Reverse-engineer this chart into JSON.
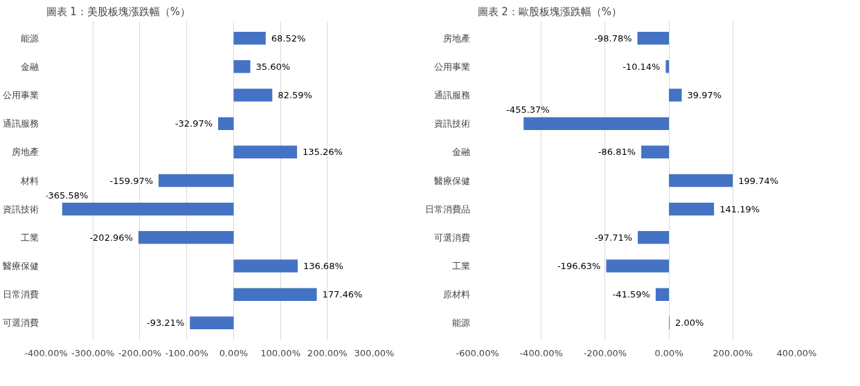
{
  "chart_data": [
    {
      "type": "bar",
      "orientation": "horizontal",
      "title": "圖表 1：美股板塊漲跌幅（%）",
      "categories": [
        "能源",
        "金融",
        "公用事業",
        "通訊服務",
        "房地產",
        "材料",
        "資訊技術",
        "工業",
        "醫療保健",
        "日常消費",
        "可選消費"
      ],
      "series": [
        {
          "color": "#4472c4",
          "values": [
            68.52,
            35.6,
            82.59,
            -32.97,
            135.26,
            -159.97,
            -365.58,
            -202.96,
            136.68,
            177.46,
            -93.21
          ]
        }
      ],
      "value_labels": [
        "68.52%",
        "35.60%",
        "82.59%",
        "-32.97%",
        "135.26%",
        "-159.97%",
        "-365.58%",
        "-202.96%",
        "136.68%",
        "177.46%",
        "-93.21%"
      ],
      "xlim": [
        -400,
        300
      ],
      "xticks": [
        {
          "value": -400,
          "label": "-400.00%"
        },
        {
          "value": -300,
          "label": "-300.00%"
        },
        {
          "value": -200,
          "label": "-200.00%"
        },
        {
          "value": -100,
          "label": "-100.00%"
        },
        {
          "value": 0,
          "label": "0.00%"
        },
        {
          "value": 100,
          "label": "100.00%"
        },
        {
          "value": 200,
          "label": "200.00%"
        },
        {
          "value": 300,
          "label": "300.00%"
        }
      ],
      "grid": "x"
    },
    {
      "type": "bar",
      "orientation": "horizontal",
      "title": "圖表 2：歐股板塊漲跌幅（%）",
      "categories": [
        "房地產",
        "公用事業",
        "通訊服務",
        "資訊技術",
        "金融",
        "醫療保健",
        "日常消費品",
        "可選消費",
        "工業",
        "原材料",
        "能源"
      ],
      "series": [
        {
          "color": "#4472c4",
          "values": [
            -98.78,
            -10.14,
            39.97,
            -455.37,
            -86.81,
            199.74,
            141.19,
            -97.71,
            -196.63,
            -41.59,
            2.0
          ]
        }
      ],
      "value_labels": [
        "-98.78%",
        "-10.14%",
        "39.97%",
        "-455.37%",
        "-86.81%",
        "199.74%",
        "141.19%",
        "-97.71%",
        "-196.63%",
        "-41.59%",
        "2.00%"
      ],
      "xlim": [
        -600,
        400
      ],
      "xticks": [
        {
          "value": -600,
          "label": "-600.00%"
        },
        {
          "value": -400,
          "label": "-400.00%"
        },
        {
          "value": -200,
          "label": "-200.00%"
        },
        {
          "value": 0,
          "label": "0.00%"
        },
        {
          "value": 200,
          "label": "200.00%"
        },
        {
          "value": 400,
          "label": "400.00%"
        }
      ],
      "grid": "x"
    }
  ]
}
